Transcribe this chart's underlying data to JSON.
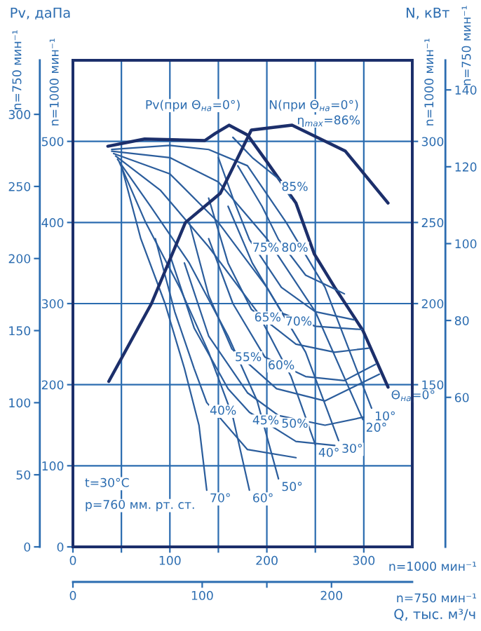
{
  "chart_data": [
    {
      "type": "line",
      "xlabel": "n=1000 мин⁻¹",
      "x2label": "n=750 мин⁻¹",
      "ylabel": "n=1000 мин⁻¹",
      "y2label": "n=750 мин⁻¹",
      "xlim": [
        0,
        350
      ],
      "xticks": [
        0,
        {
          "value": 50,
          "label": null
        },
        100,
        {
          "value": 150,
          "label": null
        },
        200,
        {
          "value": 250,
          "label": null
        },
        300
      ],
      "x2lim": [
        0,
        262.5
      ],
      "x2ticks": [
        0,
        100,
        {
          "value": 150,
          "label": null
        },
        200
      ],
      "ylim": [
        0,
        600
      ],
      "yticks": [
        0,
        100,
        200,
        300,
        400,
        500
      ],
      "y2lim": [
        0,
        337.5
      ],
      "y2ticks": [
        0,
        50,
        100,
        150,
        200,
        250,
        300
      ],
      "grid": true,
      "series": [
        {
          "name": "Pv(при Θ$_{на}$=0°)",
          "color": "#1c2f6b",
          "x": [
            36,
            74,
            136,
            147,
            161,
            180,
            200,
            230,
            249,
            270,
            299,
            325
          ],
          "values": [
            494,
            503,
            501,
            510,
            520,
            508,
            475,
            424,
            361,
            320,
            267,
            197
          ]
        },
        {
          "color": "#2b5d9c",
          "x": [
            40,
            100,
            140,
            180,
            220,
            260,
            308
          ],
          "values": [
            490,
            495,
            490,
            470,
            400,
            320,
            171
          ]
        },
        {
          "color": "#2b5d9c",
          "x": [
            40,
            100,
            150,
            200,
            250,
            299
          ],
          "values": [
            488,
            480,
            450,
            380,
            290,
            157
          ]
        },
        {
          "color": "#2b5d9c",
          "x": [
            42,
            100,
            150,
            200,
            240,
            274
          ],
          "values": [
            485,
            460,
            400,
            320,
            240,
            131
          ]
        },
        {
          "color": "#2b5d9c",
          "x": [
            44,
            90,
            140,
            190,
            225,
            250
          ],
          "values": [
            482,
            440,
            370,
            290,
            210,
            126
          ]
        },
        {
          "color": "#2b5d9c",
          "x": [
            46,
            80,
            120,
            160,
            190,
            212
          ],
          "values": [
            478,
            420,
            350,
            260,
            180,
            84
          ]
        },
        {
          "color": "#2b5d9c",
          "x": [
            48,
            75,
            110,
            140,
            165,
            182
          ],
          "values": [
            474,
            400,
            320,
            240,
            160,
            70
          ]
        },
        {
          "color": "#2b5d9c",
          "x": [
            50,
            70,
            95,
            115,
            130,
            138
          ],
          "values": [
            470,
            380,
            300,
            220,
            150,
            70
          ]
        },
        {
          "color": "#2b5d9c",
          "x": [
            165,
            185,
            212,
            225
          ],
          "values": [
            505,
            480,
            454,
            430
          ]
        },
        {
          "color": "#2b5d9c",
          "x": [
            170,
            195,
            212,
            240,
            270,
            280
          ],
          "values": [
            470,
            420,
            379,
            335,
            318,
            312
          ]
        },
        {
          "color": "#2b5d9c",
          "x": [
            150,
            165,
            182,
            215,
            250,
            290
          ],
          "values": [
            480,
            430,
            379,
            320,
            290,
            280
          ]
        },
        {
          "color": "#2b5d9c",
          "x": [
            160,
            185,
            216,
            250,
            298
          ],
          "values": [
            420,
            350,
            288,
            272,
            268
          ]
        },
        {
          "color": "#2b5d9c",
          "x": [
            140,
            160,
            184,
            230,
            270,
            305
          ],
          "values": [
            430,
            350,
            293,
            250,
            240,
            245
          ]
        },
        {
          "color": "#2b5d9c",
          "x": [
            140,
            165,
            198,
            240,
            280,
            312
          ],
          "values": [
            380,
            300,
            234,
            210,
            205,
            225
          ]
        },
        {
          "color": "#2b5d9c",
          "x": [
            120,
            140,
            164,
            210,
            260,
            316
          ],
          "values": [
            400,
            310,
            244,
            195,
            180,
            213
          ]
        },
        {
          "color": "#2b5d9c",
          "x": [
            115,
            140,
            180,
            212,
            260,
            300
          ],
          "values": [
            350,
            260,
            190,
            162,
            150,
            160
          ]
        },
        {
          "color": "#2b5d9c",
          "x": [
            100,
            125,
            160,
            182,
            230,
            270
          ],
          "values": [
            360,
            270,
            195,
            166,
            130,
            125
          ]
        },
        {
          "color": "#2b5d9c",
          "x": [
            85,
            105,
            125,
            138,
            180,
            230
          ],
          "values": [
            380,
            290,
            220,
            178,
            120,
            110
          ]
        }
      ],
      "annotations": [
        "Pv, даПа",
        "Q, тыс. м³/ч",
        "t=30°C",
        "p=760 мм. рт. ст.",
        "η$_{max}$=86%",
        {
          "text": "Θ$_{на}$=0°",
          "x": 325,
          "y": 197
        },
        {
          "text": "10°",
          "x": 308,
          "y": 171
        },
        {
          "text": "20°",
          "x": 299,
          "y": 157
        },
        {
          "text": "30°",
          "x": 274,
          "y": 131
        },
        {
          "text": "40°",
          "x": 250,
          "y": 126
        },
        {
          "text": "50°",
          "x": 212,
          "y": 84
        },
        {
          "text": "60°",
          "x": 182,
          "y": 70
        },
        {
          "text": "70°",
          "x": 138,
          "y": 70
        },
        {
          "text": "85%",
          "x": 212,
          "y": 454
        },
        {
          "text": "80%",
          "x": 212,
          "y": 379
        },
        {
          "text": "75%",
          "x": 182,
          "y": 379
        },
        {
          "text": "70%",
          "x": 216,
          "y": 288
        },
        {
          "text": "65%",
          "x": 184,
          "y": 293
        },
        {
          "text": "60%",
          "x": 198,
          "y": 234
        },
        {
          "text": "55%",
          "x": 164,
          "y": 244
        },
        {
          "text": "50%",
          "x": 212,
          "y": 162
        },
        {
          "text": "45%",
          "x": 182,
          "y": 166
        },
        {
          "text": "40%",
          "x": 138,
          "y": 178
        }
      ]
    },
    {
      "type": "line",
      "tick_labels": "y",
      "xlim": [
        0,
        350
      ],
      "ylabel": "n=1000 мин⁻¹",
      "y2label": "n=750 мин⁻¹",
      "ylim": [
        50,
        350
      ],
      "yticks": [
        150,
        200,
        250,
        300
      ],
      "y2lim": [
        21.1,
        147.7
      ],
      "y2ticks": [
        60,
        80,
        100,
        120,
        140
      ],
      "series": [
        {
          "name": "N(при Θ$_{на}$=0°)",
          "color": "#1c2f6b",
          "x": [
            37,
            81,
            116,
            152,
            184,
            226,
            281,
            325
          ],
          "values": [
            152,
            200,
            250,
            268,
            307,
            310,
            294,
            262
          ]
        }
      ],
      "annotations": [
        "N, кВт"
      ]
    }
  ]
}
